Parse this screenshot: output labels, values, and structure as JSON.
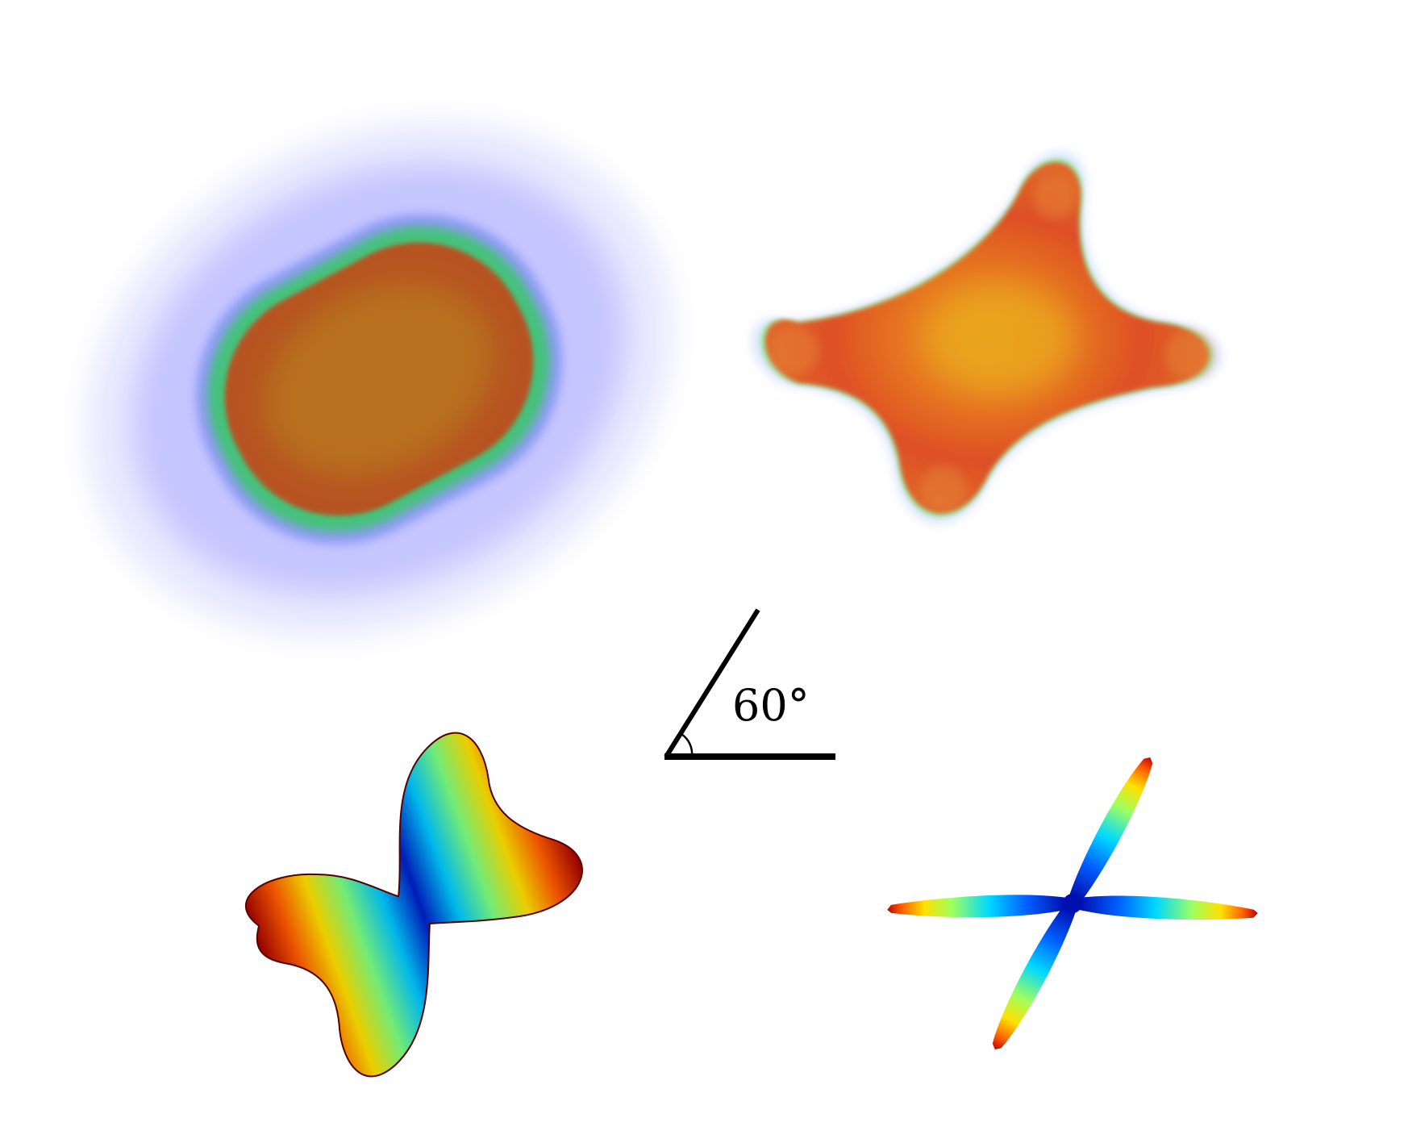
{
  "figure": {
    "angle_label": "60°",
    "panels": [
      {
        "name": "volume-render-broad",
        "colormap": [
          "#b4761e",
          "#c45a18",
          "#3fcf7a",
          "#8a8aff",
          "#ffffff"
        ]
      },
      {
        "name": "volume-render-four-lobed",
        "colormap": [
          "#e7a11f",
          "#df4d22",
          "#9ff0b0",
          "#cfd6ff",
          "#ffffff"
        ]
      },
      {
        "name": "surface-broad-two-lobed",
        "colormap": [
          "#00008b",
          "#0060ff",
          "#00e0ff",
          "#ffff00",
          "#ff8c00",
          "#aa0000"
        ]
      },
      {
        "name": "surface-thin-four-arm",
        "colormap": [
          "#00008b",
          "#0060ff",
          "#00e0ff",
          "#ffff00",
          "#ff8c00",
          "#aa0000"
        ]
      }
    ]
  }
}
